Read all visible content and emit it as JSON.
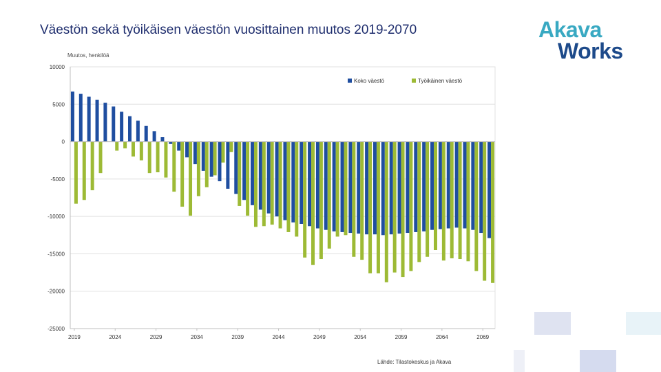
{
  "header": {
    "title": "Väestön sekä työikäisen väestön vuosittainen muutos 2019-2070",
    "logo_line1": "Akava",
    "logo_line2": "Works"
  },
  "colors": {
    "kokoVaesto": "#1f4ea0",
    "tyoikainen": "#9dba35",
    "grid": "#e0e0e0",
    "axis": "#bfbfbf",
    "deco": "#dfe3f1"
  },
  "footer": {
    "source": "Lähde: Tilastokeskus ja Akava"
  },
  "chart_data": {
    "type": "bar",
    "ylabel": "Muutos, henkilöä",
    "ylim": [
      -25000,
      10000
    ],
    "yticks": [
      10000,
      5000,
      0,
      -5000,
      -10000,
      -15000,
      -20000,
      -25000
    ],
    "ytick_labels": [
      "10000",
      "5000",
      "0",
      "-5000",
      "-10000",
      "-15000",
      "-20000",
      "-25000"
    ],
    "categories": [
      2019,
      2020,
      2021,
      2022,
      2023,
      2024,
      2025,
      2026,
      2027,
      2028,
      2029,
      2030,
      2031,
      2032,
      2033,
      2034,
      2035,
      2036,
      2037,
      2038,
      2039,
      2040,
      2041,
      2042,
      2043,
      2044,
      2045,
      2046,
      2047,
      2048,
      2049,
      2050,
      2051,
      2052,
      2053,
      2054,
      2055,
      2056,
      2057,
      2058,
      2059,
      2060,
      2061,
      2062,
      2063,
      2064,
      2065,
      2066,
      2067,
      2068,
      2069,
      2070
    ],
    "xtick_labels": [
      "2019",
      "2024",
      "2029",
      "2034",
      "2039",
      "2044",
      "2049",
      "2054",
      "2059",
      "2064",
      "2069"
    ],
    "legend_position": "top-right",
    "series": [
      {
        "name": "Koko väestö",
        "values": [
          6700,
          6400,
          6000,
          5600,
          5200,
          4700,
          4000,
          3400,
          2800,
          2100,
          1400,
          600,
          -300,
          -1200,
          -2100,
          -3000,
          -3900,
          -4700,
          -5300,
          -6300,
          -7000,
          -7800,
          -8500,
          -9100,
          -9600,
          -10000,
          -10500,
          -10800,
          -11000,
          -11300,
          -11600,
          -11800,
          -12000,
          -12100,
          -12200,
          -12300,
          -12400,
          -12400,
          -12500,
          -12400,
          -12300,
          -12200,
          -12100,
          -12000,
          -11800,
          -11700,
          -11600,
          -11500,
          -11600,
          -11800,
          -12200,
          -12900
        ]
      },
      {
        "name": "Työikäinen väestö",
        "values": [
          -8300,
          -7800,
          -6500,
          -4200,
          0,
          -1200,
          -900,
          -2000,
          -2500,
          -4200,
          -4100,
          -4800,
          -6700,
          -8700,
          -9900,
          -7300,
          -6100,
          -4500,
          -2800,
          -1400,
          -8600,
          -9900,
          -11400,
          -11300,
          -11100,
          -11600,
          -12100,
          -12700,
          -15500,
          -16500,
          -15700,
          -14300,
          -12700,
          -12500,
          -15400,
          -15800,
          -17600,
          -17600,
          -18800,
          -17500,
          -18100,
          -17300,
          -16100,
          -15400,
          -14500,
          -15900,
          -15600,
          -15700,
          -16000,
          -17300,
          -18600,
          -18900
        ]
      }
    ]
  }
}
